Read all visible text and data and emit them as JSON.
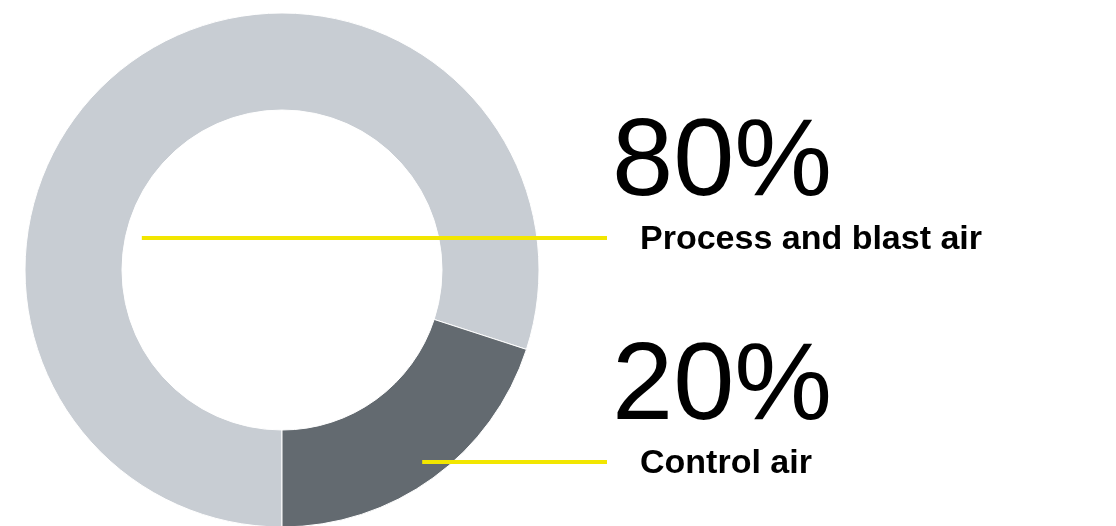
{
  "chart_data": {
    "type": "donut",
    "categories": [
      "Process and blast air",
      "Control air"
    ],
    "values": [
      80,
      20
    ],
    "colors": [
      "#c8cdd3",
      "#636a70"
    ],
    "value_labels": [
      "80%",
      "20%"
    ]
  }
}
